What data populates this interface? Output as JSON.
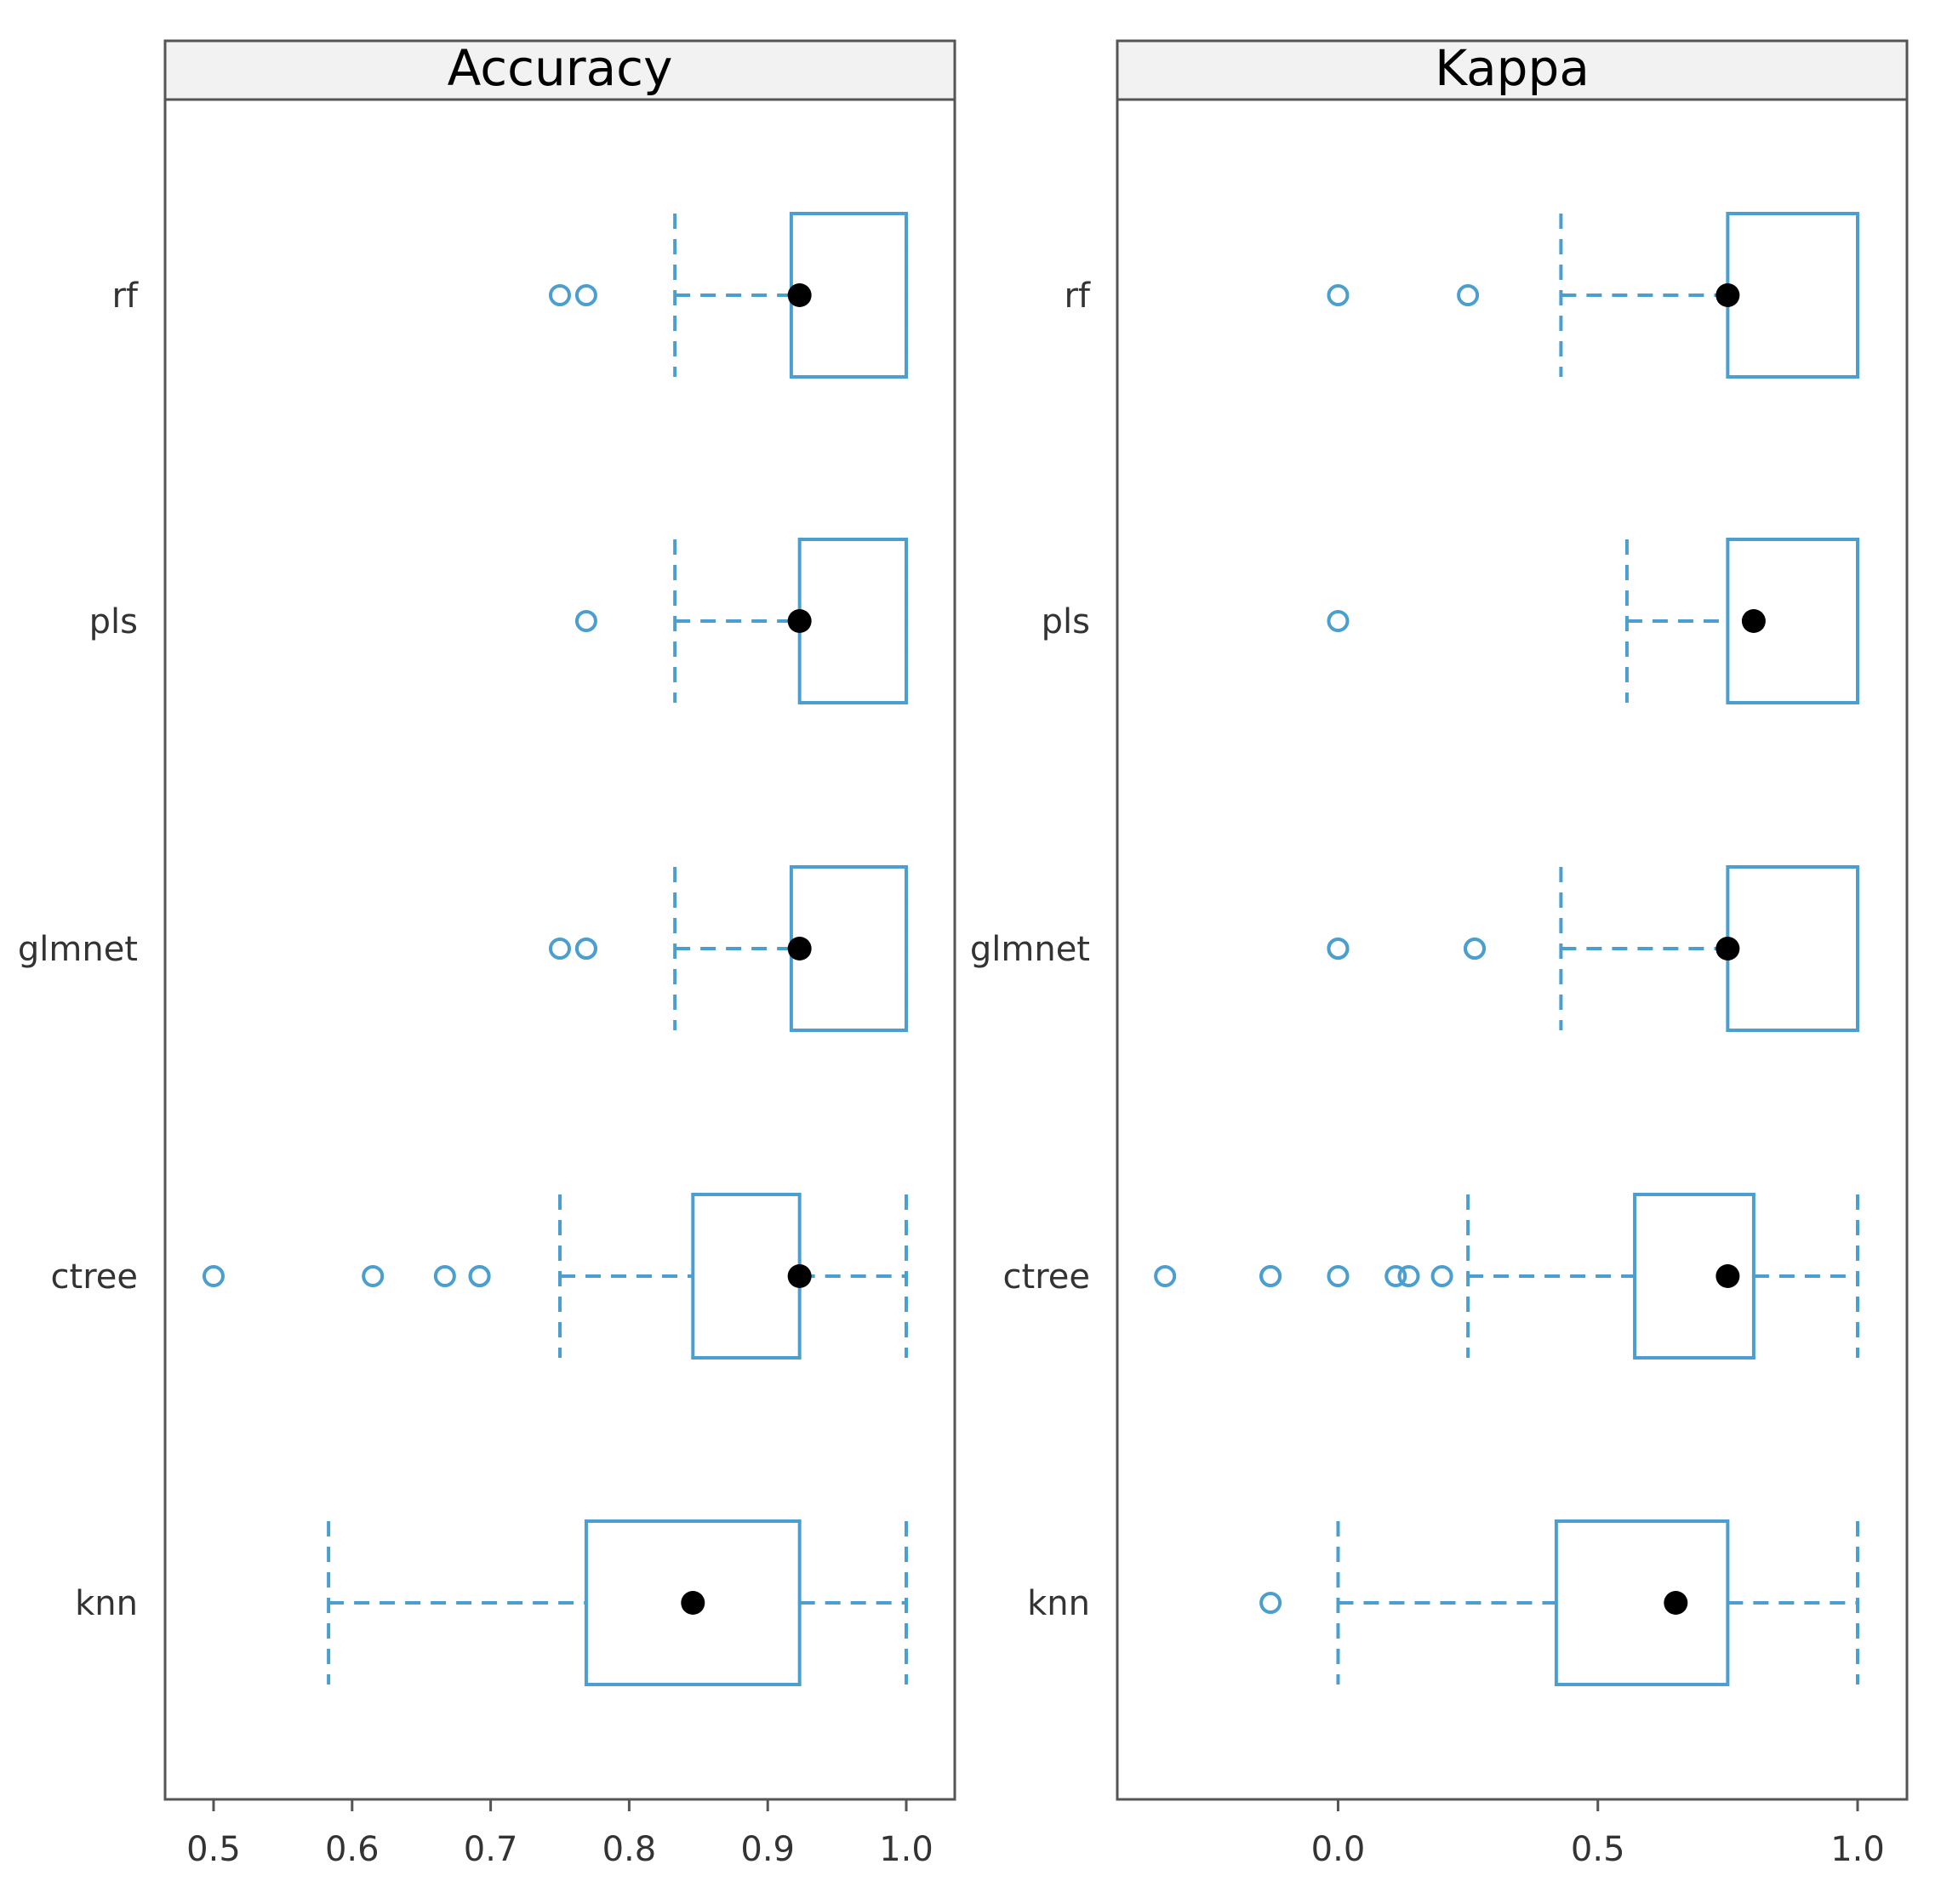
{
  "chart_data": {
    "type": "boxplot",
    "colors": {
      "box": "#4a9fd0",
      "median_dot": "#000000",
      "strip_bg": "#f2f2f2",
      "panel_border": "#555555"
    },
    "categories": [
      "rf",
      "pls",
      "glmnet",
      "ctree",
      "knn"
    ],
    "panels": [
      {
        "title": "Accuracy",
        "xlim": [
          0.465,
          1.035
        ],
        "ticks": [
          0.5,
          0.6,
          0.7,
          0.8,
          0.9,
          1.0
        ],
        "tick_labels": [
          "0.5",
          "0.6",
          "0.7",
          "0.8",
          "0.9",
          "1.0"
        ],
        "boxes": [
          {
            "category": "rf",
            "whisker_low": 0.833,
            "q1": 0.917,
            "median": 0.923,
            "q3": 1.0,
            "whisker_high": 1.0,
            "outliers": [
              0.75,
              0.769
            ]
          },
          {
            "category": "pls",
            "whisker_low": 0.833,
            "q1": 0.923,
            "median": 0.923,
            "q3": 1.0,
            "whisker_high": 1.0,
            "outliers": [
              0.769
            ]
          },
          {
            "category": "glmnet",
            "whisker_low": 0.833,
            "q1": 0.917,
            "median": 0.923,
            "q3": 1.0,
            "whisker_high": 1.0,
            "outliers": [
              0.75,
              0.769,
              0.769
            ]
          },
          {
            "category": "ctree",
            "whisker_low": 0.75,
            "q1": 0.846,
            "median": 0.923,
            "q3": 0.923,
            "whisker_high": 1.0,
            "outliers": [
              0.5,
              0.615,
              0.667,
              0.692,
              0.692
            ]
          },
          {
            "category": "knn",
            "whisker_low": 0.583,
            "q1": 0.769,
            "median": 0.846,
            "q3": 0.923,
            "whisker_high": 1.0,
            "outliers": []
          }
        ]
      },
      {
        "title": "Kappa",
        "xlim": [
          -0.425,
          1.095
        ],
        "ticks": [
          0.0,
          0.5,
          1.0
        ],
        "tick_labels": [
          "0.0",
          "0.5",
          "1.0"
        ],
        "boxes": [
          {
            "category": "rf",
            "whisker_low": 0.429,
            "q1": 0.75,
            "median": 0.75,
            "q3": 1.0,
            "whisker_high": 1.0,
            "outliers": [
              0.0,
              0.25
            ]
          },
          {
            "category": "pls",
            "whisker_low": 0.556,
            "q1": 0.75,
            "median": 0.8,
            "q3": 1.0,
            "whisker_high": 1.0,
            "outliers": [
              0.0
            ]
          },
          {
            "category": "glmnet",
            "whisker_low": 0.429,
            "q1": 0.75,
            "median": 0.75,
            "q3": 1.0,
            "whisker_high": 1.0,
            "outliers": [
              0.0,
              0.0,
              0.263,
              0.263
            ]
          },
          {
            "category": "ctree",
            "whisker_low": 0.25,
            "q1": 0.571,
            "median": 0.75,
            "q3": 0.8,
            "whisker_high": 1.0,
            "outliers": [
              -0.333,
              -0.13,
              -0.13,
              0.0,
              0.111,
              0.136,
              0.2
            ]
          },
          {
            "category": "knn",
            "whisker_low": 0.0,
            "q1": 0.42,
            "median": 0.65,
            "q3": 0.75,
            "whisker_high": 1.0,
            "outliers": [
              -0.13
            ]
          }
        ]
      }
    ]
  }
}
